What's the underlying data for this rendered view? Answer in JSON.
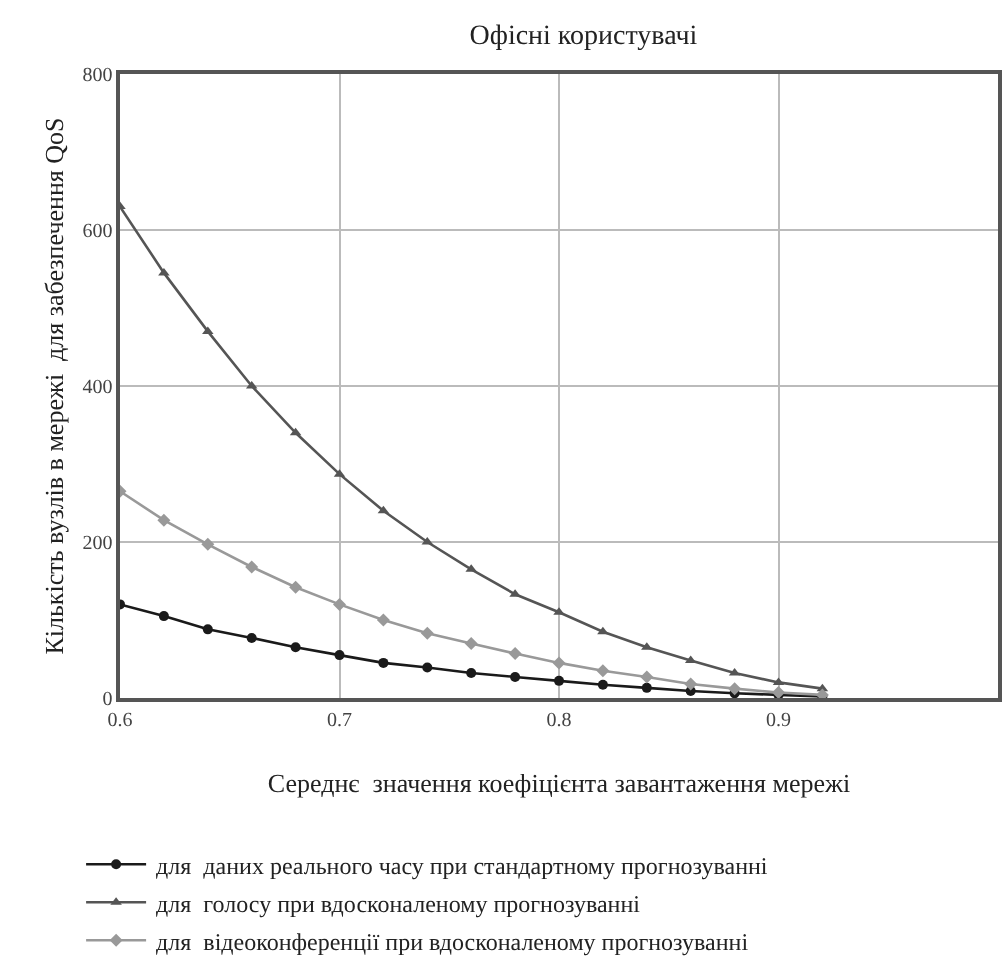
{
  "chart_data": {
    "type": "line",
    "title": "Офісні користувачі",
    "xlabel": "Середнє  значення коефіцієнта завантаження мережі",
    "ylabel": "Кількість вузлів в мережі  для забезпечення QoS",
    "x": [
      0.6,
      0.62,
      0.64,
      0.66,
      0.68,
      0.7,
      0.72,
      0.74,
      0.76,
      0.78,
      0.8,
      0.82,
      0.84,
      0.86,
      0.88,
      0.9,
      0.92
    ],
    "series": [
      {
        "name": "для  даних реального часу при стандартному прогнозуванні",
        "color": "#1a1a1a",
        "marker": "circle",
        "values": [
          120,
          105,
          88,
          77,
          65,
          55,
          45,
          39,
          32,
          27,
          22,
          17,
          13,
          9,
          6,
          4,
          2
        ]
      },
      {
        "name": "для  голосу при вдосконаленому прогнозуванні",
        "color": "#555555",
        "marker": "triangle",
        "values": [
          630,
          545,
          470,
          400,
          340,
          287,
          240,
          200,
          165,
          133,
          110,
          85,
          65,
          48,
          32,
          20,
          12
        ]
      },
      {
        "name": "для  відеоконференції при вдосконаленому прогнозуванні",
        "color": "#999999",
        "marker": "diamond",
        "values": [
          265,
          228,
          197,
          168,
          142,
          120,
          100,
          83,
          70,
          57,
          45,
          35,
          27,
          18,
          12,
          7,
          4
        ]
      }
    ],
    "xlim": [
      0.6,
      1.0
    ],
    "xticks": [
      0.6,
      0.7,
      0.8,
      0.9
    ],
    "ylim": [
      0,
      800
    ],
    "yticks": [
      0,
      200,
      400,
      600,
      800
    ],
    "grid": true,
    "legend": "bottom"
  }
}
